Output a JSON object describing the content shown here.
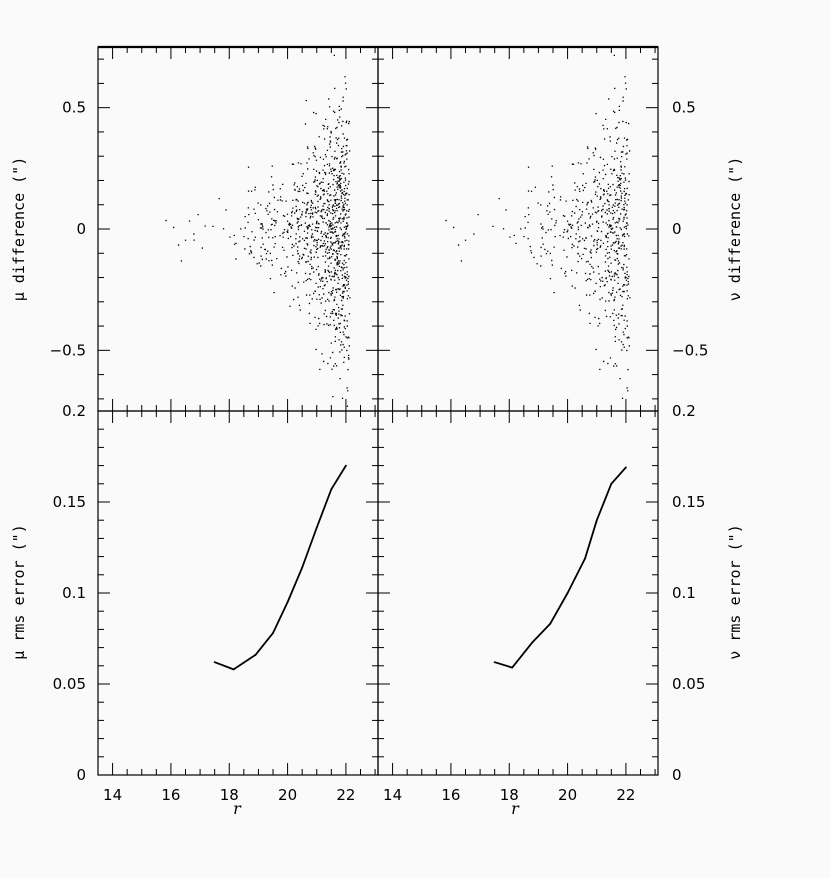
{
  "figure": {
    "background": "#fafafa",
    "ink": "#000000",
    "xlabel": "r"
  },
  "chart_data": [
    {
      "id": "mu-difference",
      "type": "scatter",
      "title": "",
      "xlabel": "",
      "ylabel": "μ difference (\")",
      "xlim": [
        13.5,
        23.1
      ],
      "ylim": [
        -0.75,
        0.75
      ],
      "yticks": [
        -0.5,
        0,
        0.5
      ],
      "ytick_labels": [
        "−0.5",
        "0",
        "0.5"
      ],
      "grid": false,
      "spread_model": {
        "a": 0.045,
        "b": 0.265,
        "c": 0.55,
        "x_max": 22.1,
        "peak_x": 21.8
      }
    },
    {
      "id": "nu-difference",
      "type": "scatter",
      "title": "",
      "xlabel": "",
      "ylabel": "ν difference (\")",
      "xlim": [
        13.5,
        23.1
      ],
      "ylim": [
        -0.75,
        0.75
      ],
      "yticks": [
        -0.5,
        0,
        0.5
      ],
      "ytick_labels": [
        "−0.5",
        "0",
        "0.5"
      ],
      "grid": false,
      "spread_model": {
        "a": 0.045,
        "b": 0.265,
        "c": 0.55,
        "x_max": 22.1,
        "peak_x": 21.8
      }
    },
    {
      "id": "mu-rms",
      "type": "line",
      "title": "",
      "xlabel": "r",
      "ylabel": "μ rms error (\")",
      "xlim": [
        13.5,
        23.1
      ],
      "ylim": [
        0,
        0.2
      ],
      "yticks": [
        0,
        0.05,
        0.1,
        0.15,
        0.2
      ],
      "ytick_labels": [
        "0",
        "0.05",
        "0.1",
        "0.15",
        "0.2"
      ],
      "xticks": [
        14,
        16,
        18,
        20,
        22
      ],
      "xtick_labels": [
        "14",
        "16",
        "18",
        "20",
        "22"
      ],
      "grid": false,
      "series": [
        {
          "x": [
            17.5,
            18.15,
            18.9,
            19.5,
            20.0,
            20.5,
            21.0,
            21.5,
            22.0
          ],
          "y": [
            0.062,
            0.058,
            0.066,
            0.078,
            0.095,
            0.114,
            0.136,
            0.157,
            0.17
          ]
        }
      ]
    },
    {
      "id": "nu-rms",
      "type": "line",
      "title": "",
      "xlabel": "r",
      "ylabel": "ν rms error (\")",
      "xlim": [
        13.5,
        23.1
      ],
      "ylim": [
        0,
        0.2
      ],
      "yticks": [
        0,
        0.05,
        0.1,
        0.15,
        0.2
      ],
      "ytick_labels": [
        "0",
        "0.05",
        "0.1",
        "0.15",
        "0.2"
      ],
      "xticks": [
        14,
        16,
        18,
        20,
        22
      ],
      "xtick_labels": [
        "14",
        "16",
        "18",
        "20",
        "22"
      ],
      "grid": false,
      "series": [
        {
          "x": [
            17.5,
            18.1,
            18.8,
            19.4,
            20.0,
            20.6,
            21.0,
            21.5,
            22.0
          ],
          "y": [
            0.062,
            0.059,
            0.073,
            0.083,
            0.1,
            0.119,
            0.14,
            0.16,
            0.169
          ]
        }
      ]
    }
  ]
}
